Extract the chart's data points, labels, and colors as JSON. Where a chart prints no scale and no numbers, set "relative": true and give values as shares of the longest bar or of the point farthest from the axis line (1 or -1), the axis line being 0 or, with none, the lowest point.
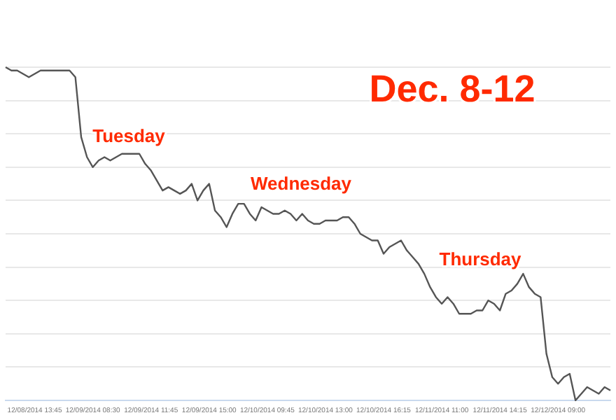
{
  "chart_data": {
    "type": "line",
    "relative": true,
    "grid": "y",
    "legend": false,
    "marker": "none",
    "line_style": "solid",
    "title": "Dec. 8-12",
    "annotations": [
      "Tuesday",
      "Wednesday",
      "Thursday"
    ],
    "categories": [
      null,
      null,
      null,
      null,
      null,
      "12/08/2014 13:45",
      null,
      null,
      null,
      null,
      null,
      null,
      null,
      null,
      null,
      "12/09/2014 08:30",
      null,
      null,
      null,
      null,
      null,
      null,
      null,
      null,
      null,
      "12/09/2014 11:45",
      null,
      null,
      null,
      null,
      null,
      null,
      null,
      null,
      null,
      "12/09/2014 15:00",
      null,
      null,
      null,
      null,
      null,
      null,
      null,
      null,
      null,
      "12/10/2014 09:45",
      null,
      null,
      null,
      null,
      null,
      null,
      null,
      null,
      null,
      "12/10/2014 13:00",
      null,
      null,
      null,
      null,
      null,
      null,
      null,
      null,
      null,
      "12/10/2014 16:15",
      null,
      null,
      null,
      null,
      null,
      null,
      null,
      null,
      null,
      "12/11/2014 11:00",
      null,
      null,
      null,
      null,
      null,
      null,
      null,
      null,
      null,
      "12/11/2014 14:15",
      null,
      null,
      null,
      null,
      null,
      null,
      null,
      null,
      null,
      "12/12/2014 09:00",
      null,
      null,
      null,
      null,
      null,
      null,
      null,
      null,
      null
    ],
    "series": [
      {
        "color": "#555555",
        "values": [
          1.0,
          0.99,
          0.99,
          0.98,
          0.97,
          0.98,
          0.99,
          0.99,
          0.99,
          0.99,
          0.99,
          0.99,
          0.97,
          0.79,
          0.73,
          0.7,
          0.72,
          0.73,
          0.72,
          0.73,
          0.74,
          0.74,
          0.74,
          0.74,
          0.71,
          0.69,
          0.66,
          0.63,
          0.64,
          0.63,
          0.62,
          0.63,
          0.65,
          0.6,
          0.63,
          0.65,
          0.57,
          0.55,
          0.52,
          0.56,
          0.59,
          0.59,
          0.56,
          0.54,
          0.58,
          0.57,
          0.56,
          0.56,
          0.57,
          0.56,
          0.54,
          0.56,
          0.54,
          0.53,
          0.53,
          0.54,
          0.54,
          0.54,
          0.55,
          0.55,
          0.53,
          0.5,
          0.49,
          0.48,
          0.48,
          0.44,
          0.46,
          0.47,
          0.48,
          0.45,
          0.43,
          0.41,
          0.38,
          0.34,
          0.31,
          0.29,
          0.31,
          0.29,
          0.26,
          0.26,
          0.26,
          0.27,
          0.27,
          0.3,
          0.29,
          0.27,
          0.32,
          0.33,
          0.35,
          0.38,
          0.34,
          0.32,
          0.31,
          0.14,
          0.07,
          0.05,
          0.07,
          0.08,
          0.0,
          0.02,
          0.04,
          0.03,
          0.02,
          0.04,
          0.03
        ]
      }
    ]
  }
}
